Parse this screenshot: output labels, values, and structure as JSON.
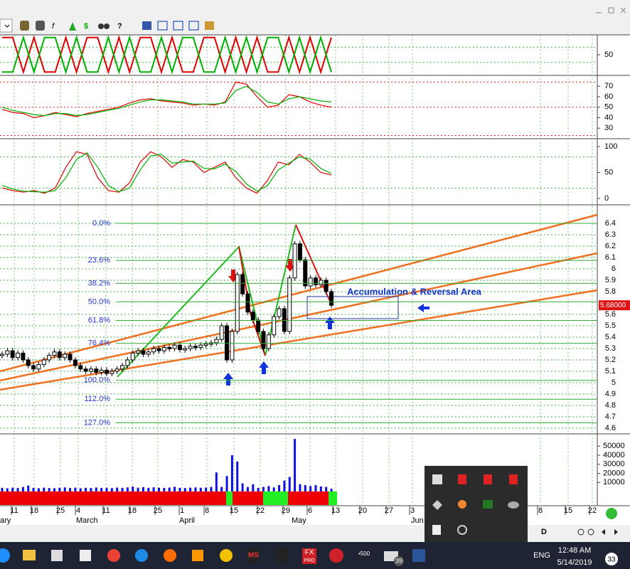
{
  "oscillator_1": {
    "ylim": [
      0,
      100
    ],
    "yticks": [
      50
    ],
    "guides": [
      30,
      70
    ],
    "series": [
      {
        "color": "#e00000",
        "values": [
          95,
          95,
          5,
          95,
          5,
          5,
          95,
          5,
          95,
          95,
          5,
          95,
          5,
          95,
          95,
          5,
          95,
          5,
          5,
          95,
          95,
          5,
          95,
          5,
          95,
          5,
          5,
          95,
          5,
          95,
          5,
          95
        ]
      },
      {
        "color": "#00b000",
        "values": [
          5,
          5,
          95,
          5,
          95,
          95,
          5,
          95,
          5,
          5,
          95,
          5,
          95,
          5,
          5,
          95,
          5,
          95,
          95,
          5,
          5,
          95,
          5,
          95,
          5,
          95,
          95,
          5,
          95,
          5,
          95,
          5
        ]
      }
    ]
  },
  "oscillator_2": {
    "ylim": [
      22,
      79
    ],
    "yticks": [
      70,
      60,
      50,
      40,
      30
    ],
    "guides": [
      74,
      50,
      23
    ],
    "series": [
      {
        "color": "#e00000",
        "values": [
          48,
          45,
          44,
          40,
          42,
          45,
          43,
          41,
          44,
          46,
          48,
          50,
          54,
          57,
          58,
          56,
          55,
          54,
          52,
          53,
          52,
          55,
          74,
          72,
          60,
          50,
          52,
          62,
          60,
          55,
          52,
          50
        ]
      },
      {
        "color": "#00b000",
        "values": [
          50,
          47,
          45,
          43,
          42,
          44,
          44,
          42,
          43,
          45,
          47,
          49,
          52,
          55,
          57,
          57,
          56,
          55,
          53,
          53,
          53,
          54,
          66,
          70,
          64,
          55,
          53,
          58,
          60,
          58,
          56,
          55
        ]
      }
    ]
  },
  "oscillator_3": {
    "ylim": [
      -11,
      111
    ],
    "yticks": [
      100,
      50,
      0
    ],
    "guides": [
      80,
      20
    ],
    "series": [
      {
        "color": "#e00000",
        "values": [
          20,
          15,
          12,
          15,
          10,
          20,
          60,
          90,
          85,
          40,
          15,
          12,
          30,
          70,
          90,
          80,
          60,
          75,
          70,
          50,
          60,
          70,
          40,
          20,
          10,
          35,
          70,
          65,
          85,
          70,
          50,
          45
        ]
      },
      {
        "color": "#00b000",
        "values": [
          25,
          18,
          14,
          13,
          12,
          15,
          40,
          75,
          88,
          60,
          25,
          13,
          20,
          55,
          82,
          85,
          68,
          70,
          72,
          58,
          57,
          66,
          52,
          28,
          14,
          25,
          55,
          68,
          80,
          76,
          58,
          48
        ]
      }
    ]
  },
  "price": {
    "ylim": [
      4.55,
      6.55
    ],
    "yticks": [
      6.4,
      6.3,
      6.2,
      6.1,
      6.0,
      5.9,
      5.8,
      5.6,
      5.5,
      5.4,
      5.3,
      5.2,
      5.1,
      5.0,
      4.9,
      4.8,
      4.7,
      4.6
    ],
    "closes": [
      5.25,
      5.28,
      5.22,
      5.26,
      5.2,
      5.15,
      5.12,
      5.16,
      5.2,
      5.24,
      5.27,
      5.22,
      5.25,
      5.2,
      5.15,
      5.12,
      5.1,
      5.12,
      5.09,
      5.11,
      5.08,
      5.1,
      5.12,
      5.15,
      5.2,
      5.26,
      5.28,
      5.25,
      5.27,
      5.3,
      5.28,
      5.31,
      5.3,
      5.33,
      5.29,
      5.3,
      5.32,
      5.31,
      5.33,
      5.34,
      5.35,
      5.38,
      5.5,
      5.2,
      5.45,
      5.95,
      5.78,
      5.62,
      5.55,
      5.45,
      5.3,
      5.42,
      5.58,
      5.65,
      5.45,
      5.92,
      6.22,
      6.08,
      5.85,
      5.92,
      5.86,
      5.9,
      5.8,
      5.68
    ],
    "last_price": {
      "value": 5.68,
      "label": "5.68000"
    },
    "fib_high": 6.4,
    "fib_low": 5.02,
    "fib_levels": [
      {
        "value": 0,
        "label": "0.0%"
      },
      {
        "value": 23.6,
        "label": "23.6%"
      },
      {
        "value": 38.2,
        "label": "38.2%"
      },
      {
        "value": 50,
        "label": "50.0%"
      },
      {
        "value": 61.8,
        "label": "61.8%"
      },
      {
        "value": 76.4,
        "label": "76.4%"
      },
      {
        "value": 100,
        "label": "100.0%"
      },
      {
        "value": 112,
        "label": "112.0%"
      },
      {
        "value": 127,
        "label": "127.0%"
      }
    ],
    "annotation": "Accumulation & Reversal Area"
  },
  "volume": {
    "ylim": [
      0,
      62000
    ],
    "yticks": [
      50000,
      40000,
      30000,
      20000,
      10000
    ],
    "color": "#1010e0",
    "values": [
      4000,
      3500,
      4200,
      3800,
      5000,
      6500,
      4000,
      3500,
      4200,
      3800,
      3600,
      4000,
      4500,
      3800,
      4200,
      3500,
      4000,
      3800,
      4400,
      3900,
      4100,
      3700,
      4300,
      4000,
      4500,
      5500,
      4200,
      4800,
      4000,
      4600,
      4100,
      3900,
      4300,
      5200,
      4000,
      3800,
      4200,
      4500,
      4100,
      4300,
      5000,
      21000,
      5000,
      17000,
      40000,
      33000,
      9000,
      5000,
      8000,
      4000,
      5000,
      6000,
      4500,
      7000,
      12000,
      16000,
      58000,
      8000,
      7000,
      6000,
      7000,
      5500,
      5000,
      3000
    ]
  },
  "dates": [
    "11",
    "18",
    "25",
    "4",
    "11",
    "18",
    "25",
    "1",
    "8",
    "15",
    "22",
    "29",
    "6",
    "13",
    "20",
    "27",
    "3",
    "8",
    "15",
    "22"
  ],
  "months": [
    "ary",
    "March",
    "April",
    "May",
    "Jun"
  ],
  "toolbar": {
    "dollar": "$",
    "query": "?"
  },
  "bottom_bar": {
    "d_button": "D"
  },
  "taskbar": {
    "fx_icon": "FX",
    "fx_sub": "PRO",
    "ms_icon": "MS",
    "news_badge": "39",
    "market_icon": "•500",
    "language": "ENG",
    "time": "12:48 AM",
    "date": "5/14/2019",
    "notifications": "33"
  }
}
